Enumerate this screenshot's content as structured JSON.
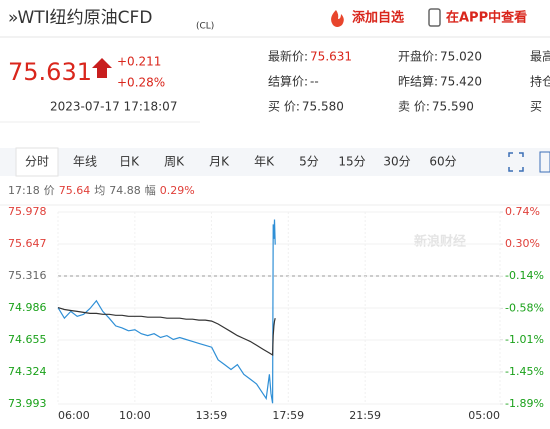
{
  "header": {
    "title": "»WTI纽约原油CFD",
    "code": "(CL)",
    "actions": [
      "添加自选",
      "在APP中查看"
    ]
  },
  "quote": {
    "price": "75.631",
    "change": "+0.211",
    "change_pct": "+0.28%",
    "time": "2023-07-17 17:18:07"
  },
  "stats": [
    [
      [
        "最新价:",
        "75.631"
      ],
      [
        "开盘价:",
        "75.020"
      ],
      [
        "最高",
        ""
      ]
    ],
    [
      [
        "结算价:",
        "--"
      ],
      [
        "昨结算:",
        "75.420"
      ],
      [
        "持仓",
        ""
      ]
    ],
    [
      [
        "买  价:",
        "75.580"
      ],
      [
        "卖  价:",
        "75.590"
      ],
      [
        "买",
        ""
      ]
    ]
  ],
  "tabs": [
    "分时",
    "年线",
    "日K",
    "周K",
    "月K",
    "年K",
    "5分",
    "15分",
    "30分",
    "60分"
  ],
  "info": {
    "time": "17:18",
    "price_label": "价",
    "price": "75.64",
    "avg_label": "均",
    "avg": "74.88",
    "amp_label": "幅",
    "amp": "0.29%"
  },
  "chart_data": {
    "type": "line",
    "watermark": "新浪财经",
    "x": [
      0,
      20,
      40,
      60,
      80,
      100,
      120,
      140,
      160,
      180,
      200,
      220,
      240,
      260,
      280,
      300,
      320,
      340,
      360,
      380,
      400,
      420,
      440,
      460,
      480,
      500,
      520,
      540,
      560,
      580,
      600,
      620,
      640,
      650,
      660,
      665,
      670,
      672,
      674,
      676,
      678
    ],
    "series": [
      {
        "name": "价",
        "color": "#2f8fd6",
        "values": [
          74.99,
          74.88,
          74.95,
          74.9,
          74.92,
          74.98,
          75.06,
          74.95,
          74.88,
          74.8,
          74.78,
          74.75,
          74.76,
          74.72,
          74.7,
          74.72,
          74.68,
          74.7,
          74.66,
          74.68,
          74.66,
          74.64,
          74.62,
          74.6,
          74.58,
          74.45,
          74.4,
          74.35,
          74.4,
          74.3,
          74.25,
          74.2,
          74.1,
          74.05,
          74.3,
          74.1,
          74.0,
          75.85,
          75.7,
          75.9,
          75.64
        ]
      },
      {
        "name": "均",
        "color": "#333333",
        "values": [
          74.99,
          74.97,
          74.96,
          74.95,
          74.94,
          74.93,
          74.93,
          74.92,
          74.92,
          74.91,
          74.91,
          74.9,
          74.9,
          74.9,
          74.89,
          74.89,
          74.89,
          74.88,
          74.88,
          74.88,
          74.87,
          74.87,
          74.86,
          74.86,
          74.85,
          74.82,
          74.78,
          74.74,
          74.7,
          74.67,
          74.64,
          74.6,
          74.56,
          74.54,
          74.52,
          74.51,
          74.5,
          74.7,
          74.8,
          74.85,
          74.88
        ]
      }
    ],
    "xlim": [
      0,
      1380
    ],
    "xticks": [
      {
        "value": 0,
        "label": "06:00"
      },
      {
        "value": 240,
        "label": "10:00"
      },
      {
        "value": 479,
        "label": "13:59"
      },
      {
        "value": 719,
        "label": "17:59"
      },
      {
        "value": 959,
        "label": "21:59"
      },
      {
        "value": 1380,
        "label": "05:00"
      }
    ],
    "ylim": [
      73.993,
      75.978
    ],
    "yticks": [
      75.978,
      75.647,
      75.316,
      74.986,
      74.655,
      74.324,
      73.993
    ],
    "y2lim": [
      -1.89,
      0.74
    ],
    "y2ticks": [
      {
        "value": 0.74,
        "label": "0.74%"
      },
      {
        "value": 0.3,
        "label": "0.30%"
      },
      {
        "value": -0.14,
        "label": "-0.14%"
      },
      {
        "value": -0.58,
        "label": "-0.58%"
      },
      {
        "value": -1.01,
        "label": "-1.01%"
      },
      {
        "value": -1.45,
        "label": "-1.45%"
      },
      {
        "value": -1.89,
        "label": "-1.89%"
      }
    ],
    "ref_line": 75.316,
    "up_color": "#e0403a",
    "down_color": "#1aa11a"
  }
}
